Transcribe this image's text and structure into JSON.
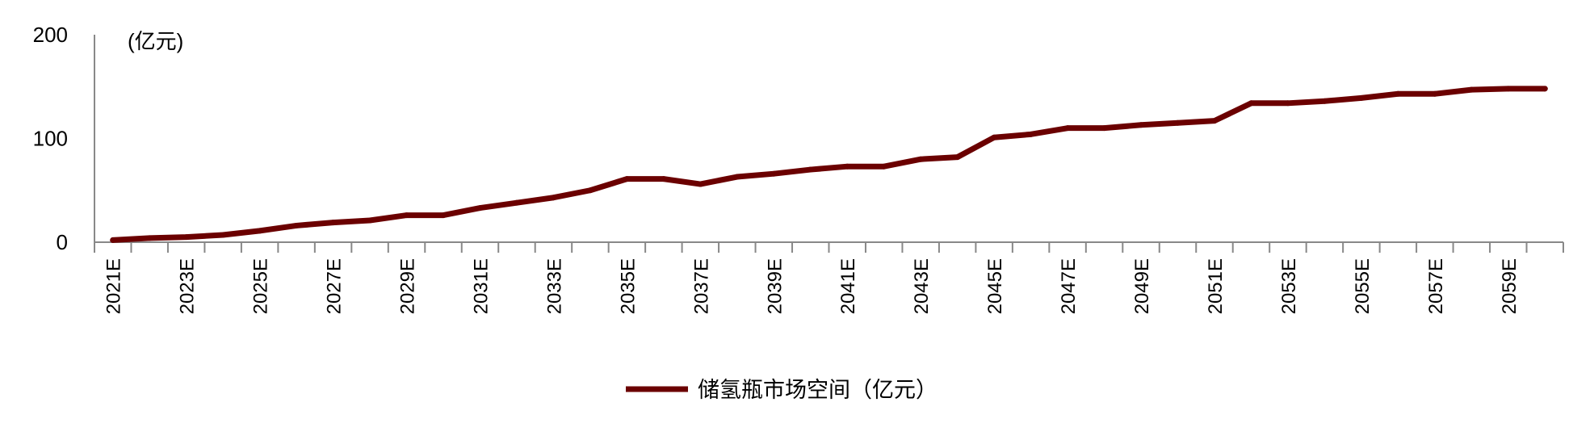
{
  "chart_data": {
    "type": "line",
    "title": "",
    "unit_label": "(亿元)",
    "xlabel": "",
    "ylabel": "",
    "ylim": [
      0,
      200
    ],
    "yticks": [
      0,
      100,
      200
    ],
    "grid": false,
    "legend_position": "bottom",
    "categories": [
      "2021E",
      "2022E",
      "2023E",
      "2024E",
      "2025E",
      "2026E",
      "2027E",
      "2028E",
      "2029E",
      "2030E",
      "2031E",
      "2032E",
      "2033E",
      "2034E",
      "2035E",
      "2036E",
      "2037E",
      "2038E",
      "2039E",
      "2040E",
      "2041E",
      "2042E",
      "2043E",
      "2044E",
      "2045E",
      "2046E",
      "2047E",
      "2048E",
      "2049E",
      "2050E",
      "2051E",
      "2052E",
      "2053E",
      "2054E",
      "2055E",
      "2056E",
      "2057E",
      "2058E",
      "2059E",
      "2060E"
    ],
    "tick_labels_shown": [
      "2021E",
      "2023E",
      "2025E",
      "2027E",
      "2029E",
      "2031E",
      "2033E",
      "2035E",
      "2037E",
      "2039E",
      "2041E",
      "2043E",
      "2045E",
      "2047E",
      "2049E",
      "2051E",
      "2053E",
      "2055E",
      "2057E",
      "2059E"
    ],
    "series": [
      {
        "name": "储氢瓶市场空间（亿元）",
        "color": "#6b0000",
        "values": [
          2,
          4,
          5,
          7,
          11,
          16,
          19,
          21,
          26,
          26,
          33,
          38,
          43,
          50,
          61,
          61,
          56,
          63,
          66,
          70,
          73,
          73,
          80,
          82,
          101,
          104,
          110,
          110,
          113,
          115,
          117,
          134,
          134,
          136,
          139,
          143,
          143,
          147,
          148,
          148
        ]
      }
    ]
  }
}
